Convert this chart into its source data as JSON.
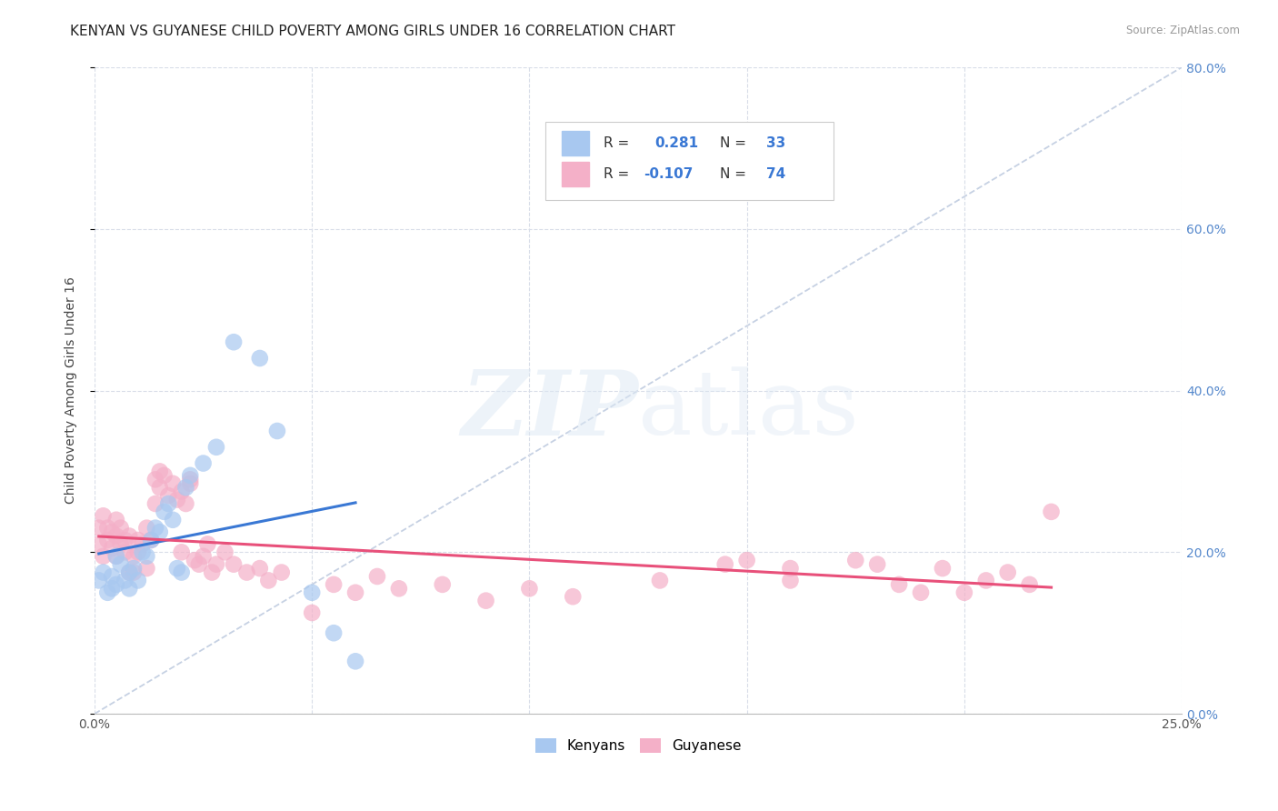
{
  "title": "KENYAN VS GUYANESE CHILD POVERTY AMONG GIRLS UNDER 16 CORRELATION CHART",
  "source": "Source: ZipAtlas.com",
  "ylabel": "Child Poverty Among Girls Under 16",
  "xlim": [
    0.0,
    0.25
  ],
  "ylim": [
    0.0,
    0.8
  ],
  "kenya_color": "#a8c8f0",
  "guyanese_color": "#f4b0c8",
  "kenya_R": 0.281,
  "kenya_N": 33,
  "guyanese_R": -0.107,
  "guyanese_N": 74,
  "kenya_line_color": "#3a78d4",
  "guyanese_line_color": "#e8507a",
  "diag_line_color": "#c0cce0",
  "watermark": "ZIPatlas",
  "kenya_points_x": [
    0.001,
    0.002,
    0.003,
    0.004,
    0.004,
    0.005,
    0.005,
    0.006,
    0.007,
    0.008,
    0.008,
    0.009,
    0.01,
    0.011,
    0.012,
    0.013,
    0.014,
    0.015,
    0.016,
    0.017,
    0.018,
    0.019,
    0.02,
    0.021,
    0.022,
    0.025,
    0.028,
    0.032,
    0.038,
    0.042,
    0.05,
    0.055,
    0.06
  ],
  "kenya_points_y": [
    0.165,
    0.175,
    0.15,
    0.155,
    0.17,
    0.16,
    0.195,
    0.185,
    0.165,
    0.175,
    0.155,
    0.18,
    0.165,
    0.2,
    0.195,
    0.215,
    0.23,
    0.225,
    0.25,
    0.26,
    0.24,
    0.18,
    0.175,
    0.28,
    0.295,
    0.31,
    0.33,
    0.46,
    0.44,
    0.35,
    0.15,
    0.1,
    0.065
  ],
  "guyanese_points_x": [
    0.001,
    0.001,
    0.002,
    0.002,
    0.003,
    0.003,
    0.004,
    0.004,
    0.005,
    0.005,
    0.005,
    0.006,
    0.006,
    0.007,
    0.007,
    0.008,
    0.008,
    0.009,
    0.009,
    0.01,
    0.01,
    0.011,
    0.012,
    0.012,
    0.013,
    0.014,
    0.014,
    0.015,
    0.015,
    0.016,
    0.017,
    0.018,
    0.019,
    0.02,
    0.02,
    0.021,
    0.022,
    0.022,
    0.023,
    0.024,
    0.025,
    0.026,
    0.027,
    0.028,
    0.03,
    0.032,
    0.035,
    0.038,
    0.04,
    0.043,
    0.05,
    0.055,
    0.06,
    0.065,
    0.07,
    0.08,
    0.09,
    0.1,
    0.11,
    0.13,
    0.15,
    0.16,
    0.175,
    0.185,
    0.195,
    0.2,
    0.21,
    0.22,
    0.215,
    0.205,
    0.19,
    0.18,
    0.16,
    0.145
  ],
  "guyanese_points_y": [
    0.23,
    0.21,
    0.245,
    0.195,
    0.215,
    0.23,
    0.205,
    0.225,
    0.22,
    0.195,
    0.24,
    0.21,
    0.23,
    0.215,
    0.2,
    0.175,
    0.22,
    0.195,
    0.175,
    0.2,
    0.215,
    0.21,
    0.18,
    0.23,
    0.215,
    0.26,
    0.29,
    0.28,
    0.3,
    0.295,
    0.27,
    0.285,
    0.265,
    0.2,
    0.275,
    0.26,
    0.285,
    0.29,
    0.19,
    0.185,
    0.195,
    0.21,
    0.175,
    0.185,
    0.2,
    0.185,
    0.175,
    0.18,
    0.165,
    0.175,
    0.125,
    0.16,
    0.15,
    0.17,
    0.155,
    0.16,
    0.14,
    0.155,
    0.145,
    0.165,
    0.19,
    0.18,
    0.19,
    0.16,
    0.18,
    0.15,
    0.175,
    0.25,
    0.16,
    0.165,
    0.15,
    0.185,
    0.165,
    0.185
  ],
  "background_color": "#ffffff",
  "grid_color": "#d8dde8",
  "title_fontsize": 11,
  "axis_label_fontsize": 10,
  "tick_fontsize": 10,
  "right_tick_color": "#5588cc"
}
